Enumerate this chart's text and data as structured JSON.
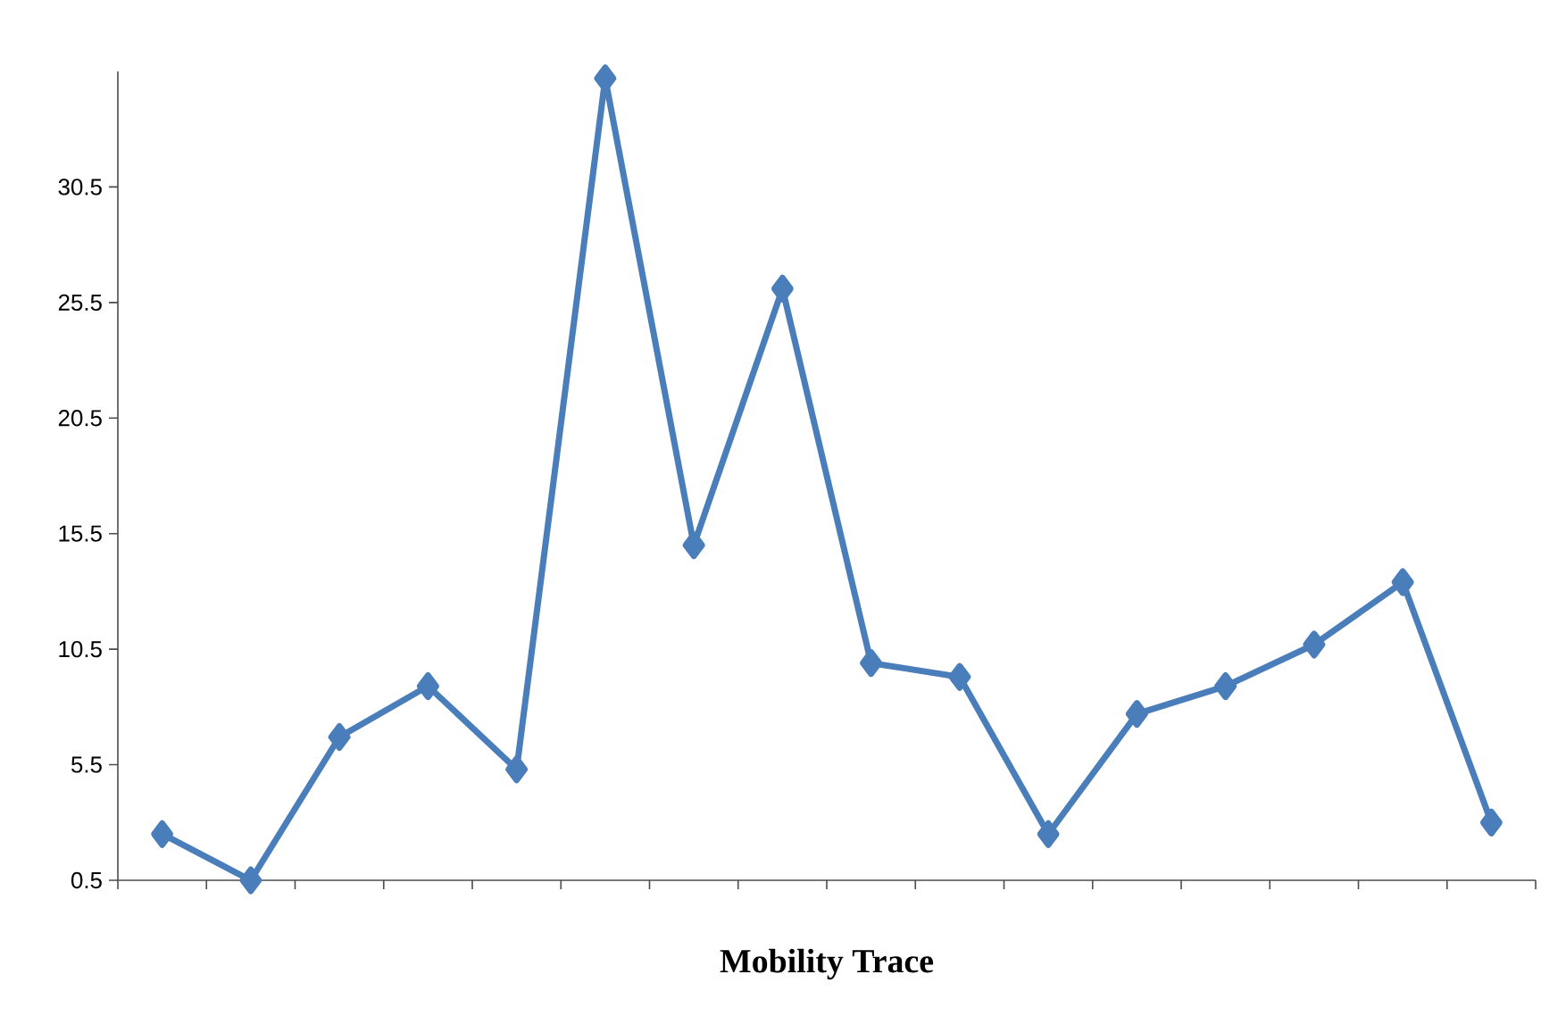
{
  "chart_data": {
    "type": "line",
    "xlabel": "Mobility Trace",
    "categories": [
      null,
      null,
      null,
      null,
      null,
      null,
      null,
      null,
      null,
      null,
      null,
      null,
      null,
      null,
      null,
      null
    ],
    "series": [
      {
        "color": "#4a7ebb",
        "values": [
          2.5,
          0.5,
          6.7,
          8.9,
          5.3,
          35.2,
          15.0,
          26.1,
          9.9,
          9.3,
          2.5,
          7.7,
          8.9,
          10.7,
          13.4,
          3.0
        ]
      }
    ],
    "ylim": [
      0.5,
      35.5
    ],
    "yticks": [
      0.5,
      5.5,
      10.5,
      15.5,
      20.5,
      25.5,
      30.5
    ],
    "tick_labels": "y",
    "grid": false,
    "marker": "diamond",
    "line_style": "solid"
  }
}
